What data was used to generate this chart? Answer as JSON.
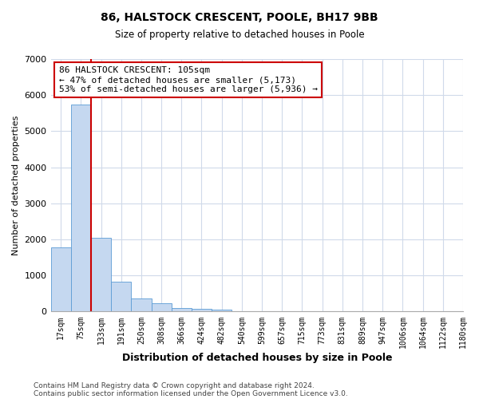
{
  "title_line1": "86, HALSTOCK CRESCENT, POOLE, BH17 9BB",
  "title_line2": "Size of property relative to detached houses in Poole",
  "xlabel": "Distribution of detached houses by size in Poole",
  "ylabel": "Number of detached properties",
  "bin_labels": [
    "17sqm",
    "75sqm",
    "133sqm",
    "191sqm",
    "250sqm",
    "308sqm",
    "366sqm",
    "424sqm",
    "482sqm",
    "540sqm",
    "599sqm",
    "657sqm",
    "715sqm",
    "773sqm",
    "831sqm",
    "889sqm",
    "947sqm",
    "1006sqm",
    "1064sqm",
    "1122sqm",
    "1180sqm"
  ],
  "bar_values": [
    1780,
    5750,
    2050,
    830,
    370,
    240,
    100,
    70,
    50,
    0,
    0,
    0,
    0,
    0,
    0,
    0,
    0,
    0,
    0,
    0
  ],
  "bar_color": "#c5d8f0",
  "bar_edge_color": "#5b9bd5",
  "annotation_text": "86 HALSTOCK CRESCENT: 105sqm\n← 47% of detached houses are smaller (5,173)\n53% of semi-detached houses are larger (5,936) →",
  "ylim": [
    0,
    7000
  ],
  "yticks": [
    0,
    1000,
    2000,
    3000,
    4000,
    5000,
    6000,
    7000
  ],
  "red_line_color": "#cc0000",
  "annotation_box_edge_color": "#cc0000",
  "footer_line1": "Contains HM Land Registry data © Crown copyright and database right 2024.",
  "footer_line2": "Contains public sector information licensed under the Open Government Licence v3.0.",
  "bg_color": "#ffffff",
  "plot_bg_color": "#ffffff",
  "grid_color": "#d0daea"
}
